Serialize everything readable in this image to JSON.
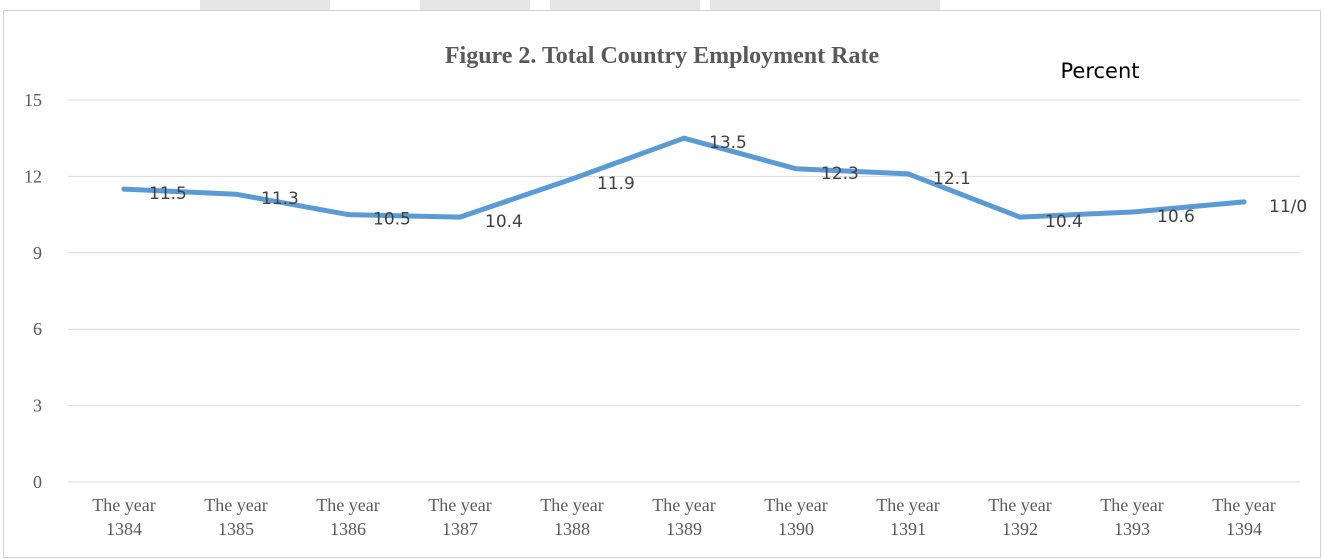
{
  "chart_data": {
    "type": "line",
    "title": "Figure 2. Total Country Employment Rate",
    "unit_label": "Percent",
    "xlabel": "",
    "ylabel": "",
    "ylim": [
      0,
      15
    ],
    "yticks": [
      "0",
      "3",
      "6",
      "9",
      "12",
      "15"
    ],
    "grid": true,
    "categories": [
      [
        "The year",
        "1384"
      ],
      [
        "The year",
        "1385"
      ],
      [
        "The year",
        "1386"
      ],
      [
        "The year",
        "1387"
      ],
      [
        "The year",
        "1388"
      ],
      [
        "The year",
        "1389"
      ],
      [
        "The year",
        "1390"
      ],
      [
        "The year",
        "1391"
      ],
      [
        "The year",
        "1392"
      ],
      [
        "The year",
        "1393"
      ],
      [
        "The year",
        "1394"
      ]
    ],
    "series": [
      {
        "values": [
          11.5,
          11.3,
          10.5,
          10.4,
          11.9,
          13.5,
          12.3,
          12.1,
          10.4,
          10.6,
          11.0
        ],
        "labels": [
          "11.5",
          "11.3",
          "10.5",
          "10.4",
          "11.9",
          "13.5",
          "12.3",
          "12.1",
          "10.4",
          "10.6",
          "11/0"
        ],
        "color": "#5b9bd5"
      }
    ]
  }
}
